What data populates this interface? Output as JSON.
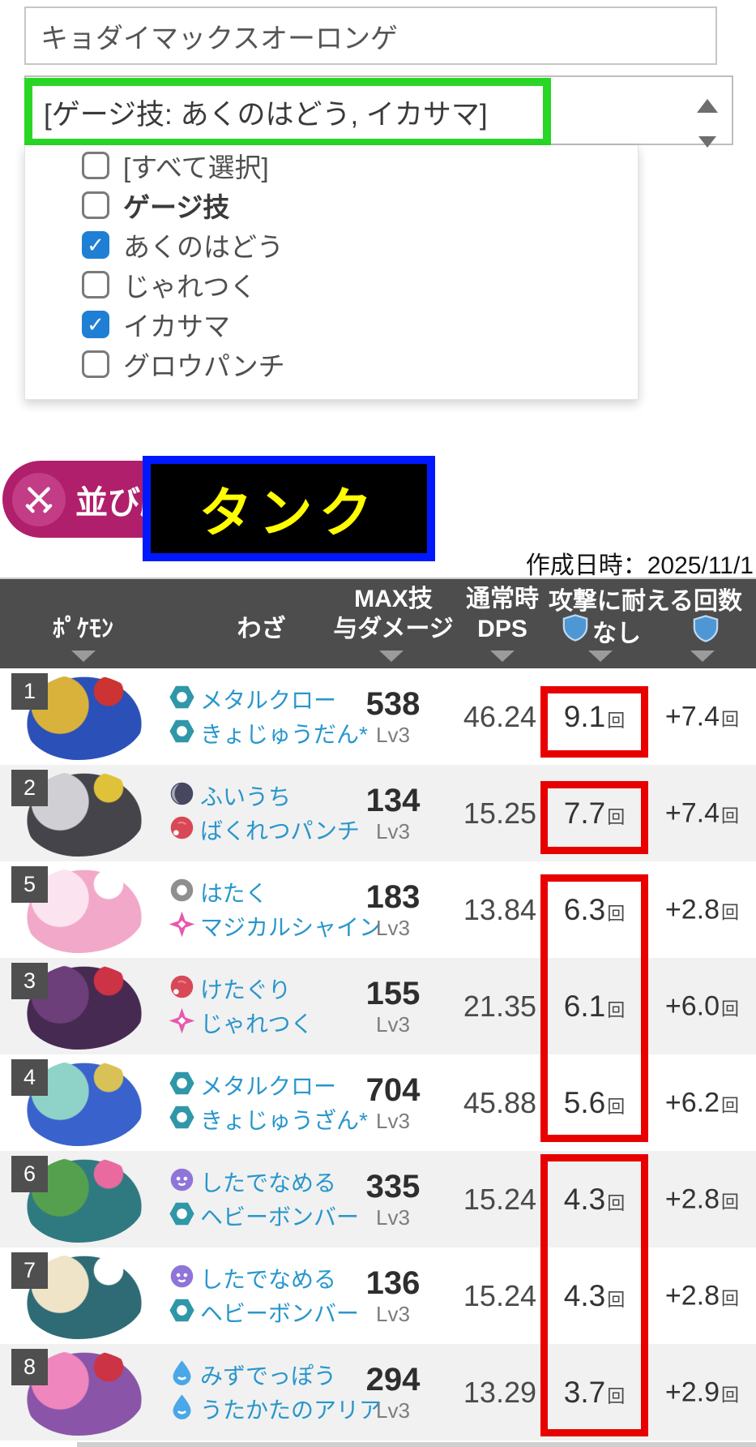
{
  "search_input": {
    "value": "キョダイマックスオーロンゲ"
  },
  "move_filter": {
    "selected_label": "[ゲージ技: あくのはどう, イカサマ]",
    "options": [
      {
        "label": "[すべて選択]",
        "checked": false,
        "bold": false
      },
      {
        "label": "ゲージ技",
        "checked": false,
        "bold": true
      },
      {
        "label": "あくのはどう",
        "checked": true,
        "bold": false
      },
      {
        "label": "じゃれつく",
        "checked": false,
        "bold": false
      },
      {
        "label": "イカサマ",
        "checked": true,
        "bold": false
      },
      {
        "label": "グロウパンチ",
        "checked": false,
        "bold": false
      }
    ]
  },
  "toolbar": {
    "sort_button_label": "並び順",
    "annotation_label": "タンク",
    "date_label": "作成日時：2025/11/1"
  },
  "table": {
    "headers": {
      "pokemon": "ﾎﾟｹﾓﾝ",
      "moves": "わざ",
      "max_damage_line1": "MAX技",
      "max_damage_line2": "与ダメージ",
      "dps_line1": "通常時",
      "dps_line2": "DPS",
      "endure": "攻撃に耐える回数",
      "shield_none_label": "なし"
    },
    "unit": "回",
    "rows": [
      {
        "rank": "1",
        "sprite": "zamazenta-sprite",
        "sprite_colors": [
          "#2b50b8",
          "#d9b23c",
          "#cc3333"
        ],
        "moves": [
          {
            "type": "steel",
            "name": "メタルクロー"
          },
          {
            "type": "steel",
            "name": "きょじゅうだん*"
          }
        ],
        "max_damage": "538",
        "level": "Lv3",
        "dps": "46.24",
        "endure_none": "9.1",
        "endure_shields": "+7.4"
      },
      {
        "rank": "2",
        "sprite": "kingambit-sprite",
        "sprite_colors": [
          "#44444a",
          "#cfcfd4",
          "#e0c23a"
        ],
        "moves": [
          {
            "type": "dark",
            "name": "ふいうち"
          },
          {
            "type": "fighting",
            "name": "ばくれつパンチ"
          }
        ],
        "max_damage": "134",
        "level": "Lv3",
        "dps": "15.25",
        "endure_none": "7.7",
        "endure_shields": "+7.4"
      },
      {
        "rank": "5",
        "sprite": "blissey-sprite",
        "sprite_colors": [
          "#f2a9c9",
          "#fbe4ef",
          "#ffffff"
        ],
        "moves": [
          {
            "type": "normal",
            "name": "はたく"
          },
          {
            "type": "fairy",
            "name": "マジカルシャイン"
          }
        ],
        "max_damage": "183",
        "level": "Lv3",
        "dps": "13.84",
        "endure_none": "6.3",
        "endure_shields": "+2.8"
      },
      {
        "rank": "3",
        "sprite": "grimmsnarl-sprite",
        "sprite_colors": [
          "#472a52",
          "#6d3f7a",
          "#cc3344"
        ],
        "moves": [
          {
            "type": "fighting",
            "name": "けたぐり"
          },
          {
            "type": "fairy",
            "name": "じゃれつく"
          }
        ],
        "max_damage": "155",
        "level": "Lv3",
        "dps": "21.35",
        "endure_none": "6.1",
        "endure_shields": "+6.0"
      },
      {
        "rank": "4",
        "sprite": "zacian-sprite",
        "sprite_colors": [
          "#3a62cc",
          "#8fd2c8",
          "#d8c257"
        ],
        "moves": [
          {
            "type": "steel",
            "name": "メタルクロー"
          },
          {
            "type": "steel",
            "name": "きょじゅうざん*"
          }
        ],
        "max_damage": "704",
        "level": "Lv3",
        "dps": "45.88",
        "endure_none": "5.6",
        "endure_shields": "+6.2"
      },
      {
        "rank": "6",
        "sprite": "gmax-snorlax-sprite",
        "sprite_colors": [
          "#2f7a80",
          "#55a04e",
          "#e86a9e"
        ],
        "moves": [
          {
            "type": "ghost",
            "name": "したでなめる"
          },
          {
            "type": "steel",
            "name": "ヘビーボンバー"
          }
        ],
        "max_damage": "335",
        "level": "Lv3",
        "dps": "15.24",
        "endure_none": "4.3",
        "endure_shields": "+2.8"
      },
      {
        "rank": "7",
        "sprite": "snorlax-sprite",
        "sprite_colors": [
          "#2e6b75",
          "#efe3c8",
          "#ffffff"
        ],
        "moves": [
          {
            "type": "ghost",
            "name": "したでなめる"
          },
          {
            "type": "steel",
            "name": "ヘビーボンバー"
          }
        ],
        "max_damage": "136",
        "level": "Lv3",
        "dps": "15.24",
        "endure_none": "4.3",
        "endure_shields": "+2.8"
      },
      {
        "rank": "8",
        "sprite": "gmax-water-sprite",
        "sprite_colors": [
          "#8a55a8",
          "#ef86bd",
          "#cc3344"
        ],
        "moves": [
          {
            "type": "water",
            "name": "みずでっぽう"
          },
          {
            "type": "water",
            "name": "うたかたのアリア"
          }
        ],
        "max_damage": "294",
        "level": "Lv3",
        "dps": "13.29",
        "endure_none": "3.7",
        "endure_shields": "+2.9"
      }
    ]
  },
  "colors": {
    "highlight_green": "#29d626",
    "annotation_border_blue": "#0018ff",
    "annotation_text_yellow": "#ffff00",
    "sort_button_magenta": "#b01f6b",
    "red_box": "#e80000",
    "header_bg": "#4d4d4d",
    "move_text_blue": "#2896cc",
    "shield_blue": "#4f97d4"
  }
}
